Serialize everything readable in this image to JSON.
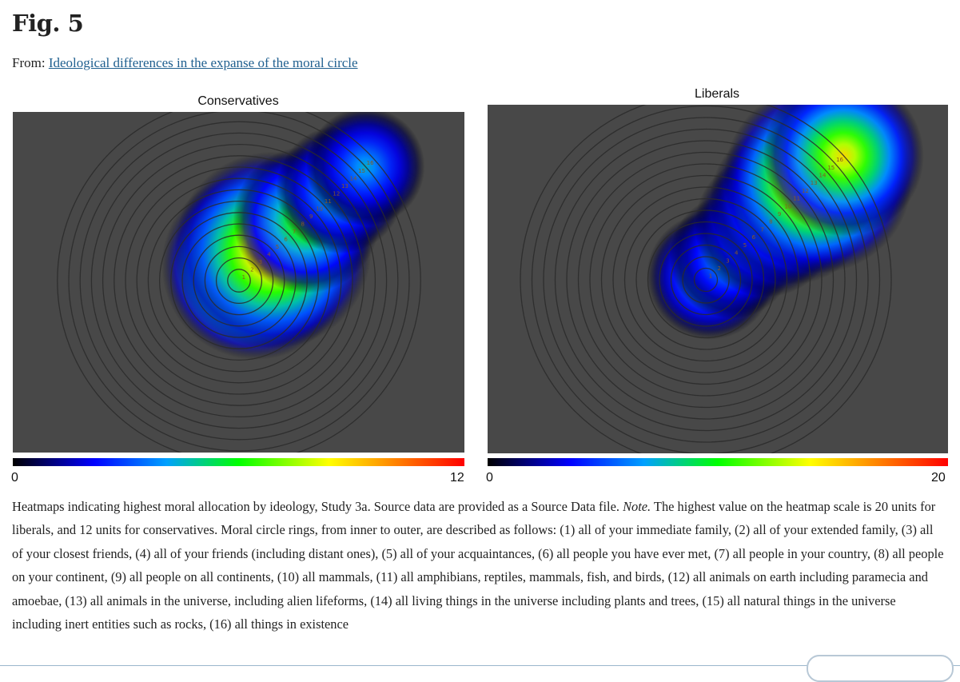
{
  "figure": {
    "title": "Fig. 5",
    "from_label": "From:",
    "article_link": "Ideological differences in the expanse of the moral circle"
  },
  "chart_data": [
    {
      "type": "heatmap",
      "title": "Conservatives",
      "scale": [
        0,
        12
      ],
      "rings": [
        "1",
        "2",
        "3",
        "4",
        "5",
        "6",
        "7",
        "8",
        "9",
        "10",
        "11",
        "12",
        "13",
        "14",
        "15",
        "16"
      ],
      "hotspots": [
        {
          "ring": 2,
          "value": 12,
          "spread": 1.0
        },
        {
          "ring": 4,
          "value": 11,
          "spread": 1.1
        },
        {
          "ring": 8,
          "value": 7.5,
          "spread": 1.0
        },
        {
          "ring": 12,
          "value": 5.5,
          "spread": 1.0
        },
        {
          "ring": 15,
          "value": 4.5,
          "spread": 1.0
        }
      ]
    },
    {
      "type": "heatmap",
      "title": "Liberals",
      "scale": [
        0,
        20
      ],
      "rings": [
        "1",
        "2",
        "3",
        "4",
        "5",
        "6",
        "7",
        "8",
        "9",
        "10",
        "11",
        "12",
        "13",
        "14",
        "15",
        "16"
      ],
      "hotspots": [
        {
          "ring": 0.5,
          "value": 9,
          "spread": 1.0
        },
        {
          "ring": 3,
          "value": 8.5,
          "spread": 1.0
        },
        {
          "ring": 7,
          "value": 9.5,
          "spread": 1.1
        },
        {
          "ring": 10,
          "value": 13,
          "spread": 1.1
        },
        {
          "ring": 13,
          "value": 20,
          "spread": 1.0
        },
        {
          "ring": 16,
          "value": 15,
          "spread": 1.0
        }
      ]
    }
  ],
  "caption": {
    "part1": "Heatmaps indicating highest moral allocation by ideology, Study 3a. Source data are provided as a Source Data file. ",
    "note_label": "Note.",
    "part2": " The highest value on the heatmap scale is 20 units for liberals, and 12 units for conservatives. Moral circle rings, from inner to outer, are described as follows: (1) all of your immediate family, (2) all of your extended family, (3) all of your closest friends, (4) all of your friends (including distant ones), (5) all of your acquaintances, (6) all people you have ever met, (7) all people in your country, (8) all people on your continent, (9) all people on all continents, (10) all mammals, (11) all amphibians, reptiles, mammals, fish, and birds, (12) all animals on earth including paramecia and amoebae, (13) all animals in the universe, including alien lifeforms, (14) all living things in the universe including plants and trees, (15) all natural things in the universe including inert entities such as rocks, (16) all things in existence"
  }
}
